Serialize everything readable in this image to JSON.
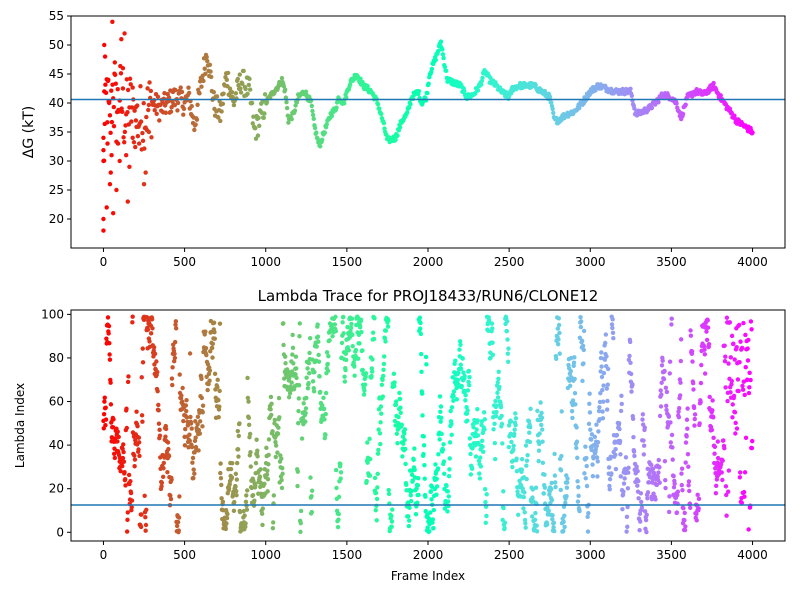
{
  "chart_data": [
    {
      "type": "scatter",
      "title": "",
      "xlabel": "",
      "ylabel": "ΔG (kT)",
      "xlim": [
        -200,
        4200
      ],
      "ylim": [
        15,
        55
      ],
      "xticks": [
        0,
        500,
        1000,
        1500,
        2000,
        2500,
        3000,
        3500,
        4000
      ],
      "yticks": [
        20,
        25,
        30,
        35,
        40,
        45,
        50,
        55
      ],
      "hline": 40.6,
      "hline_color": "#1f77b4",
      "grid": false,
      "colormap": "rainbow (color maps frame index: early=red, late=violet)",
      "trend_points": [
        [
          0,
          30
        ],
        [
          20,
          42
        ],
        [
          40,
          35
        ],
        [
          60,
          44
        ],
        [
          80,
          38
        ],
        [
          100,
          42
        ],
        [
          130,
          37
        ],
        [
          160,
          40
        ],
        [
          200,
          37
        ],
        [
          250,
          38
        ],
        [
          300,
          40
        ],
        [
          350,
          39
        ],
        [
          400,
          40
        ],
        [
          450,
          41
        ],
        [
          500,
          40
        ],
        [
          530,
          41
        ],
        [
          560,
          36
        ],
        [
          600,
          43
        ],
        [
          640,
          49
        ],
        [
          680,
          40
        ],
        [
          720,
          38
        ],
        [
          760,
          45
        ],
        [
          800,
          40
        ],
        [
          850,
          44
        ],
        [
          900,
          42
        ],
        [
          930,
          35
        ],
        [
          960,
          37
        ],
        [
          1000,
          40
        ],
        [
          1050,
          42
        ],
        [
          1080,
          43
        ],
        [
          1100,
          44
        ],
        [
          1120,
          42
        ],
        [
          1140,
          37
        ],
        [
          1170,
          38
        ],
        [
          1200,
          41
        ],
        [
          1240,
          42
        ],
        [
          1280,
          40
        ],
        [
          1300,
          36
        ],
        [
          1330,
          32.5
        ],
        [
          1360,
          35
        ],
        [
          1400,
          38
        ],
        [
          1430,
          39
        ],
        [
          1450,
          41
        ],
        [
          1480,
          40
        ],
        [
          1520,
          43.5
        ],
        [
          1560,
          45
        ],
        [
          1600,
          43
        ],
        [
          1650,
          42
        ],
        [
          1690,
          40
        ],
        [
          1720,
          37
        ],
        [
          1750,
          33.5
        ],
        [
          1800,
          34
        ],
        [
          1840,
          37
        ],
        [
          1870,
          38
        ],
        [
          1900,
          41
        ],
        [
          1940,
          42
        ],
        [
          1960,
          40
        ],
        [
          1990,
          41
        ],
        [
          2010,
          45
        ],
        [
          2050,
          48
        ],
        [
          2080,
          50.5
        ],
        [
          2100,
          47
        ],
        [
          2120,
          44
        ],
        [
          2160,
          43.5
        ],
        [
          2200,
          43
        ],
        [
          2240,
          41
        ],
        [
          2280,
          41.5
        ],
        [
          2320,
          43
        ],
        [
          2350,
          45.5
        ],
        [
          2380,
          44
        ],
        [
          2420,
          43
        ],
        [
          2450,
          42
        ],
        [
          2500,
          41
        ],
        [
          2520,
          42.5
        ],
        [
          2560,
          43
        ],
        [
          2600,
          43
        ],
        [
          2650,
          43
        ],
        [
          2700,
          42
        ],
        [
          2750,
          41
        ],
        [
          2780,
          37
        ],
        [
          2800,
          37
        ],
        [
          2850,
          38
        ],
        [
          2900,
          38.5
        ],
        [
          2950,
          40
        ],
        [
          3000,
          42
        ],
        [
          3050,
          43
        ],
        [
          3100,
          42.5
        ],
        [
          3150,
          42
        ],
        [
          3200,
          42
        ],
        [
          3250,
          42
        ],
        [
          3280,
          38
        ],
        [
          3320,
          38.5
        ],
        [
          3360,
          39
        ],
        [
          3400,
          40
        ],
        [
          3450,
          41.5
        ],
        [
          3500,
          41
        ],
        [
          3530,
          40
        ],
        [
          3560,
          37.5
        ],
        [
          3600,
          41
        ],
        [
          3650,
          42
        ],
        [
          3700,
          41.5
        ],
        [
          3760,
          43
        ],
        [
          3800,
          41
        ],
        [
          3850,
          39
        ],
        [
          3900,
          37
        ],
        [
          3950,
          36
        ],
        [
          4000,
          35
        ]
      ],
      "early_scatter_points": [
        [
          0,
          18
        ],
        [
          0,
          20
        ],
        [
          0,
          30
        ],
        [
          0,
          34
        ],
        [
          5,
          42
        ],
        [
          5,
          50
        ],
        [
          10,
          48
        ],
        [
          20,
          22
        ],
        [
          25,
          33
        ],
        [
          30,
          44
        ],
        [
          35,
          40
        ],
        [
          40,
          26
        ],
        [
          45,
          28
        ],
        [
          50,
          31
        ],
        [
          55,
          54
        ],
        [
          60,
          21
        ],
        [
          65,
          36
        ],
        [
          70,
          47
        ],
        [
          80,
          25
        ],
        [
          90,
          33
        ],
        [
          100,
          30
        ],
        [
          110,
          51
        ],
        [
          120,
          46
        ],
        [
          130,
          52
        ],
        [
          140,
          31
        ],
        [
          150,
          23
        ],
        [
          160,
          29
        ],
        [
          180,
          34
        ],
        [
          200,
          37
        ],
        [
          220,
          33
        ],
        [
          250,
          26
        ],
        [
          260,
          28
        ],
        [
          280,
          35
        ]
      ]
    },
    {
      "type": "scatter",
      "title": "Lambda Trace for PROJ18433/RUN6/CLONE12",
      "xlabel": "Frame Index",
      "ylabel": "Lambda Index",
      "xlim": [
        -200,
        4200
      ],
      "ylim": [
        -4,
        102
      ],
      "xticks": [
        0,
        500,
        1000,
        1500,
        2000,
        2500,
        3000,
        3500,
        4000
      ],
      "yticks": [
        0,
        20,
        40,
        60,
        80,
        100
      ],
      "hline": 12.5,
      "hline_color": "#1f77b4",
      "grid": false,
      "colormap": "rainbow (color maps frame index: early=red, late=violet)",
      "point_count": 4000,
      "value_range": [
        0,
        99
      ]
    }
  ]
}
